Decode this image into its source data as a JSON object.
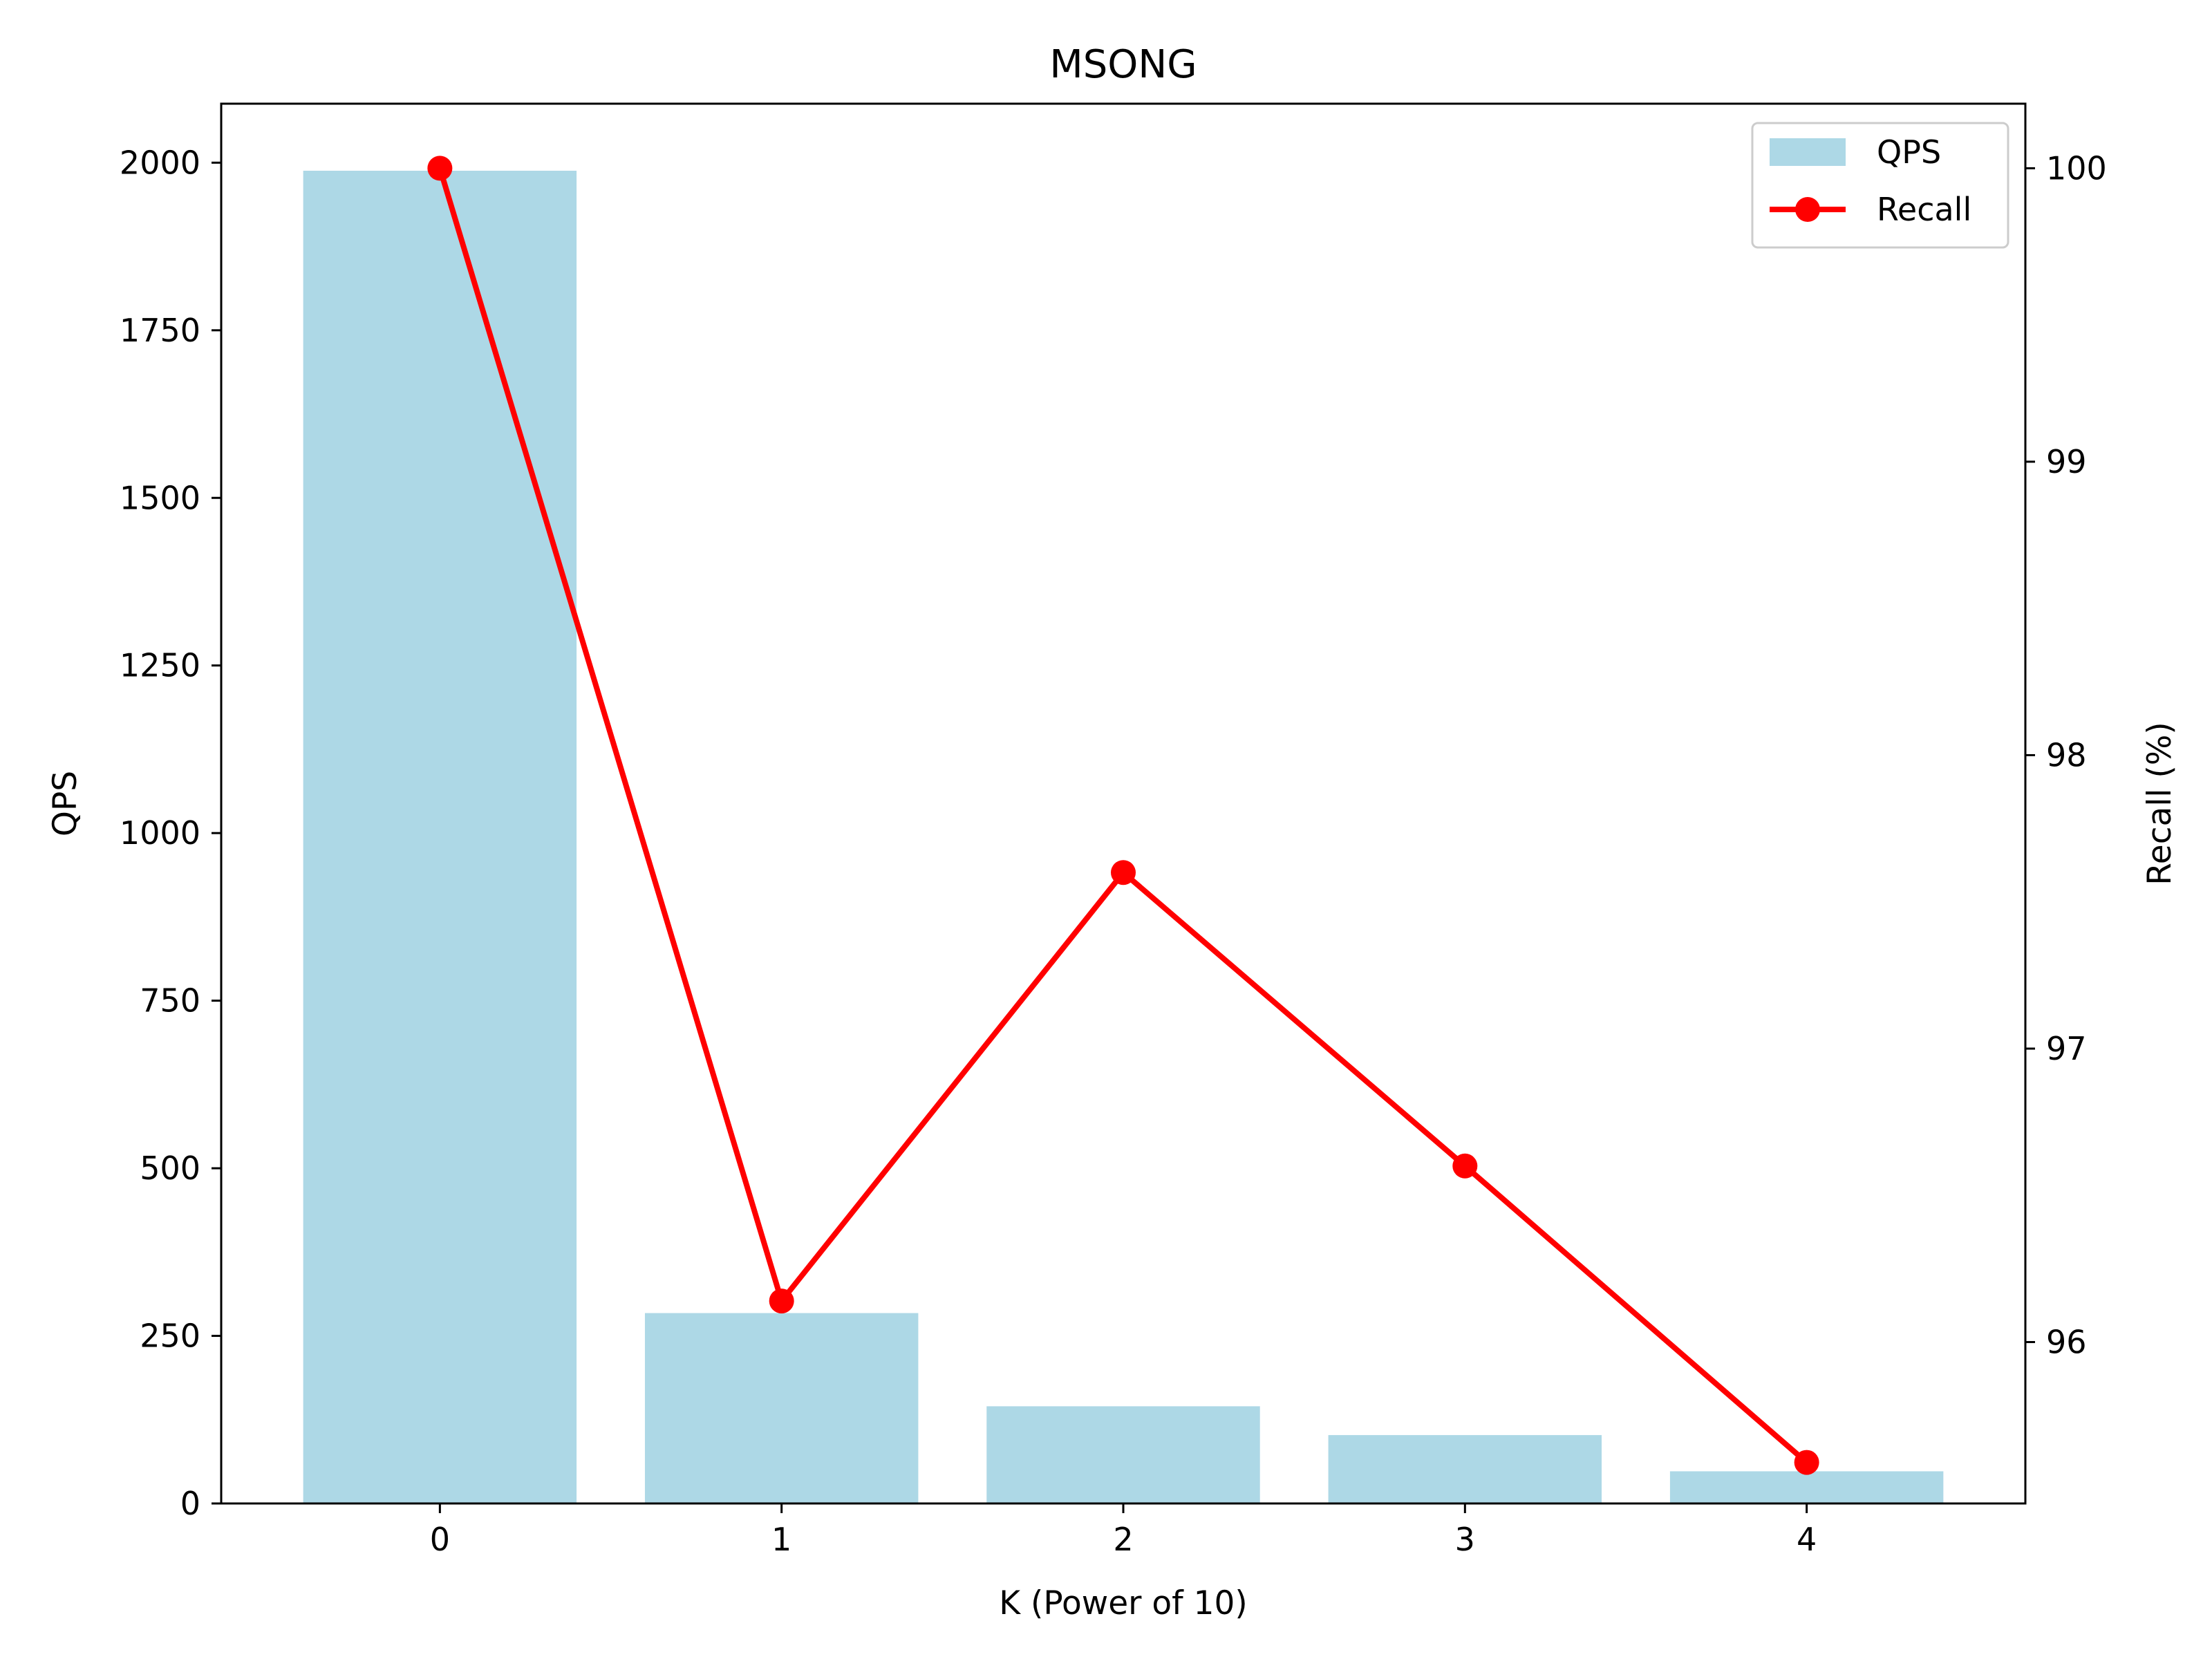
{
  "chart_data": {
    "type": "bar",
    "title": "MSONG",
    "xlabel": "K (Power of 10)",
    "ylabel": "QPS",
    "y2label": "Recall (%)",
    "categories": [
      "0",
      "1",
      "2",
      "3",
      "4"
    ],
    "x": [
      0,
      1,
      2,
      3,
      4
    ],
    "xlim": [
      -0.64,
      4.64
    ],
    "ylim": [
      0,
      2088
    ],
    "y2lim": [
      95.45,
      100.22
    ],
    "xticks": [
      "0",
      "1",
      "2",
      "3",
      "4"
    ],
    "yticks": [
      0,
      250,
      500,
      750,
      1000,
      1250,
      1500,
      1750,
      2000
    ],
    "y2ticks": [
      96,
      97,
      98,
      99,
      100
    ],
    "grid": false,
    "legend_position": "top-right",
    "series": [
      {
        "name": "QPS",
        "type": "bar",
        "axis": "left",
        "color": "#add8e6",
        "values": [
          1988,
          284,
          145,
          102,
          48
        ]
      },
      {
        "name": "Recall",
        "type": "line",
        "axis": "right",
        "color": "#ff0000",
        "marker": "circle",
        "values": [
          100.0,
          96.14,
          97.6,
          96.6,
          95.59
        ]
      }
    ]
  }
}
